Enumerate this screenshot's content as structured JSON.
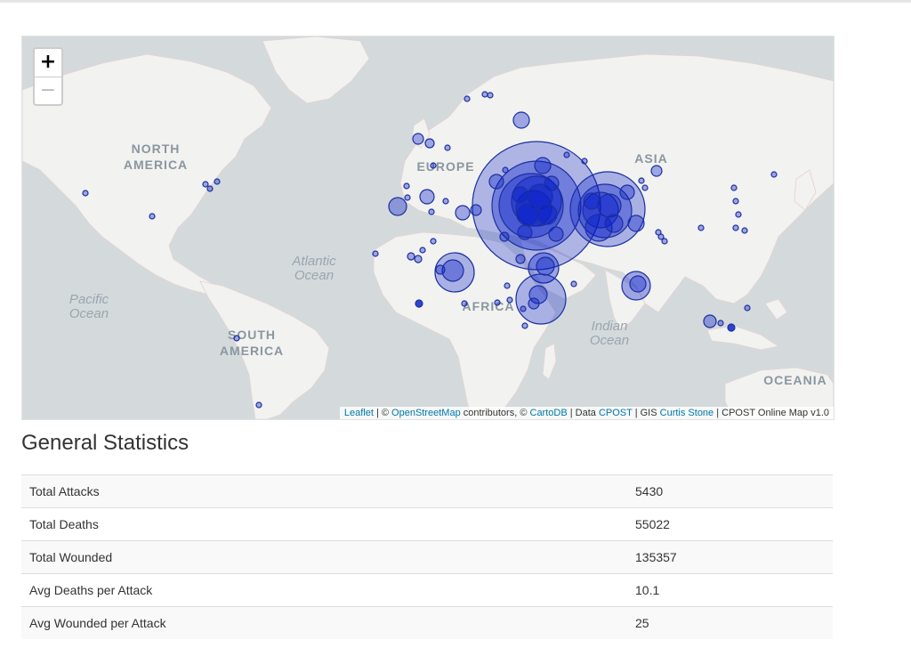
{
  "map": {
    "labels": {
      "north_america": [
        "NORTH",
        "AMERICA"
      ],
      "south_america": [
        "SOUTH",
        "AMERICA"
      ],
      "europe": "EUROPE",
      "asia": "ASIA",
      "africa": "AFRICA",
      "oceania": "OCEANIA",
      "atlantic": [
        "Atlantic",
        "Ocean"
      ],
      "pacific": [
        "Pacific",
        "Ocean"
      ],
      "indian": [
        "Indian",
        "Ocean"
      ]
    },
    "zoom": {
      "in_label": "+",
      "out_label": "−"
    },
    "attribution": {
      "leaflet": "Leaflet",
      "sep1": " | © ",
      "osm": "OpenStreetMap",
      "contrib": " contributors, © ",
      "carto": "CartoDB",
      "data": " | Data ",
      "cpost": "CPOST",
      "gis": " | GIS ",
      "author": "Curtis Stone",
      "version": " | CPOST Online Map v1.0"
    },
    "colors": {
      "water": "#d4dadc",
      "land": "#f2f2f0",
      "marker_fill": "#0018c8",
      "marker_stroke": "#1b2fa0"
    }
  },
  "stats": {
    "heading": "General Statistics",
    "rows": [
      {
        "label": "Total Attacks",
        "value": "5430"
      },
      {
        "label": "Total Deaths",
        "value": "55022"
      },
      {
        "label": "Total Wounded",
        "value": "135357"
      },
      {
        "label": "Avg Deaths per Attack",
        "value": "10.1"
      },
      {
        "label": "Avg Wounded per Attack",
        "value": "25"
      }
    ]
  }
}
